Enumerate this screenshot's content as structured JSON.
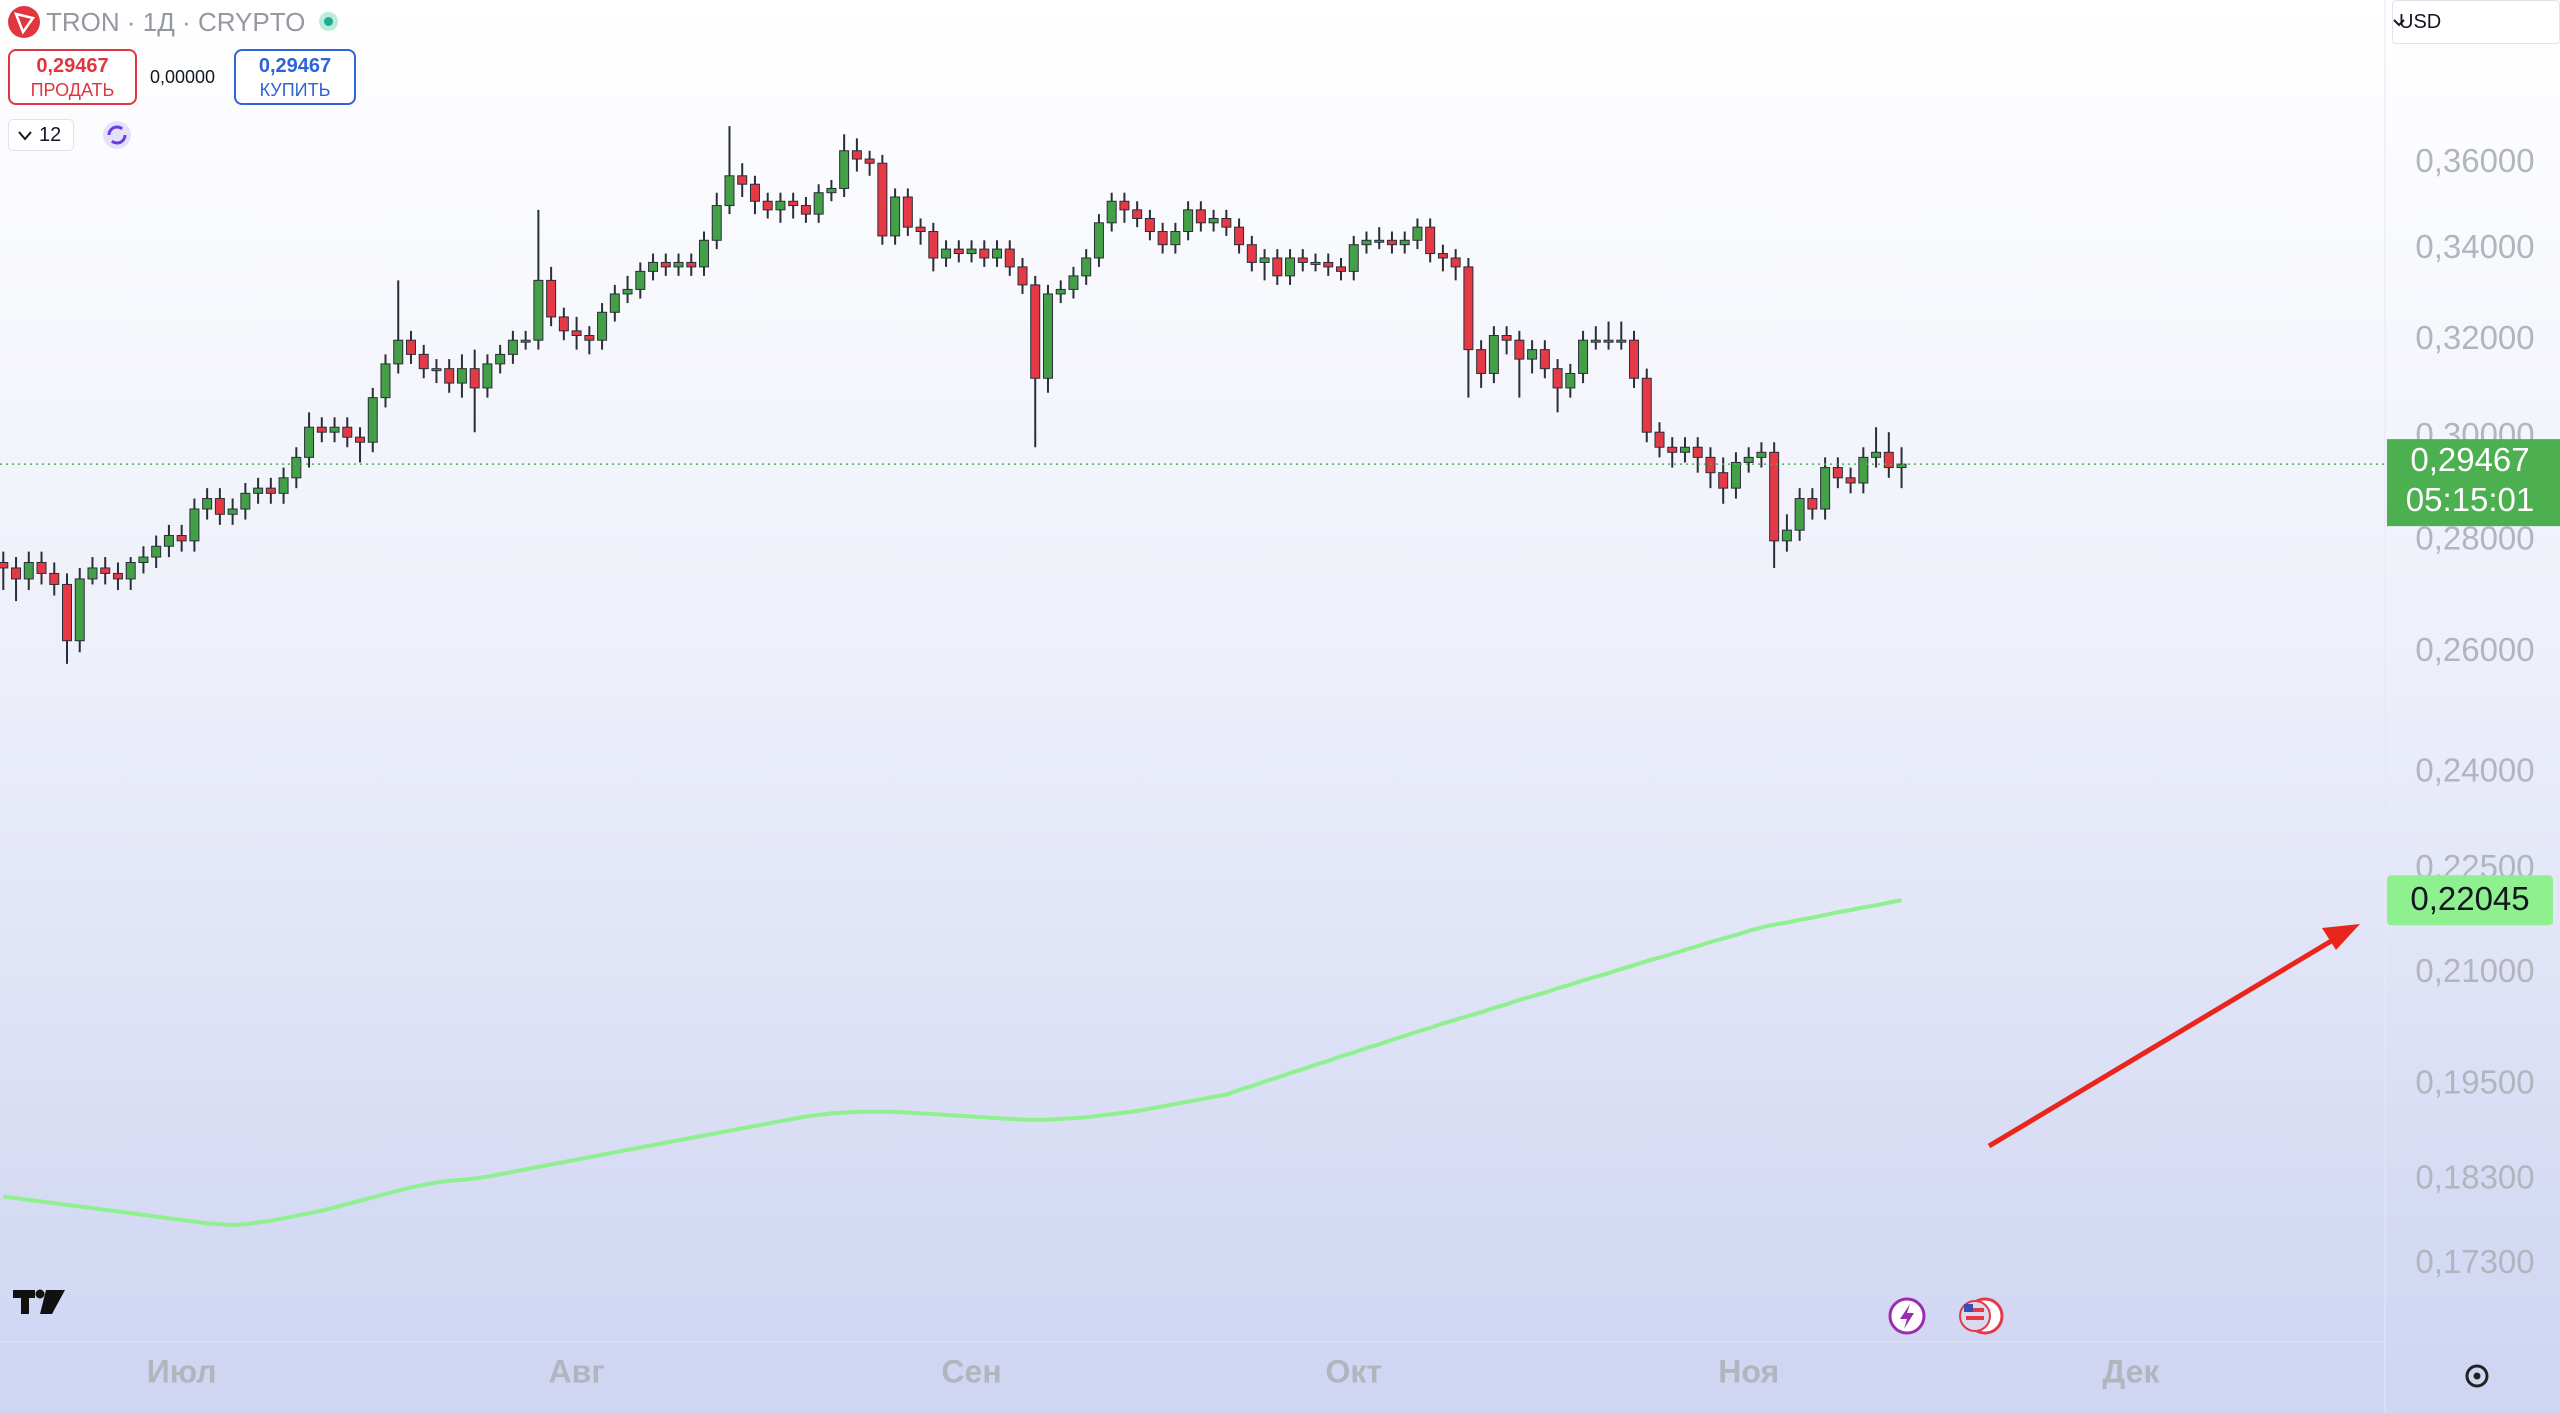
{
  "toolbar": {
    "symbol": "TRON · 1Д · CRYPTO",
    "sell_price": "0,29467",
    "sell_label": "ПРОДАТЬ",
    "spread": "0,00000",
    "buy_price": "0,29467",
    "buy_label": "КУПИТЬ",
    "interval": 12,
    "currency": "USD"
  },
  "chart_data": {
    "type": "candlestick",
    "log": true,
    "grid": false,
    "ylim": [
      0.1643,
      0.4013
    ],
    "yticks": [
      {
        "value": 0.36,
        "label": "0,36000"
      },
      {
        "value": 0.34,
        "label": "0,34000"
      },
      {
        "value": 0.32,
        "label": "0,32000"
      },
      {
        "value": 0.3,
        "label": "0,30000"
      },
      {
        "value": 0.28,
        "label": "0,28000"
      },
      {
        "value": 0.26,
        "label": "0,26000"
      },
      {
        "value": 0.24,
        "label": "0,24000"
      },
      {
        "value": 0.225,
        "label": "0,22500"
      },
      {
        "value": 0.21,
        "label": "0,21000"
      },
      {
        "value": 0.195,
        "label": "0,19500"
      },
      {
        "value": 0.183,
        "label": "0,18300"
      },
      {
        "value": 0.173,
        "label": "0,17300"
      }
    ],
    "categories": [
      null,
      null,
      null,
      null,
      null,
      null,
      null,
      null,
      null,
      null,
      null,
      null,
      null,
      null,
      "Июл",
      null,
      null,
      null,
      null,
      null,
      null,
      null,
      null,
      null,
      null,
      null,
      null,
      null,
      null,
      null,
      null,
      null,
      null,
      null,
      null,
      null,
      null,
      null,
      null,
      null,
      null,
      null,
      null,
      null,
      null,
      "Авг",
      null,
      null,
      null,
      null,
      null,
      null,
      null,
      null,
      null,
      null,
      null,
      null,
      null,
      null,
      null,
      null,
      null,
      null,
      null,
      null,
      null,
      null,
      null,
      null,
      null,
      null,
      null,
      null,
      null,
      null,
      "Сен",
      null,
      null,
      null,
      null,
      null,
      null,
      null,
      null,
      null,
      null,
      null,
      null,
      null,
      null,
      null,
      null,
      null,
      null,
      null,
      null,
      null,
      null,
      null,
      null,
      null,
      null,
      null,
      null,
      null,
      "Окт",
      null,
      null,
      null,
      null,
      null,
      null,
      null,
      null,
      null,
      null,
      null,
      null,
      null,
      null,
      null,
      null,
      null,
      null,
      null,
      null,
      null,
      null,
      null,
      null,
      null,
      null,
      null,
      null,
      null,
      null,
      "Ноя",
      null,
      null,
      null,
      null,
      null,
      null,
      null,
      null,
      null,
      null,
      null,
      null,
      null,
      null,
      null,
      null,
      null,
      null,
      null,
      null,
      null,
      null,
      null,
      null,
      null,
      null,
      null,
      null,
      null,
      "Дек"
    ],
    "candles": {
      "up_color": "#43a047",
      "down_color": "#e53946",
      "last_label": "0,29467",
      "last_color": "#4caf50",
      "countdown": "05:15:01",
      "open": [
        0.276,
        0.275,
        0.273,
        0.276,
        0.274,
        0.272,
        0.262,
        0.273,
        0.275,
        0.274,
        0.273,
        0.276,
        0.277,
        0.279,
        0.281,
        0.28,
        0.286,
        0.288,
        0.285,
        0.286,
        0.289,
        0.29,
        0.289,
        0.292,
        0.296,
        0.302,
        0.301,
        0.302,
        0.3,
        0.299,
        0.308,
        0.315,
        0.32,
        0.317,
        0.314,
        0.314,
        0.311,
        0.314,
        0.31,
        0.315,
        0.317,
        0.32,
        0.32,
        0.333,
        0.325,
        0.322,
        0.321,
        0.32,
        0.326,
        0.33,
        0.331,
        0.335,
        0.337,
        0.336,
        0.337,
        0.336,
        0.342,
        0.35,
        0.357,
        0.355,
        0.351,
        0.349,
        0.351,
        0.35,
        0.348,
        0.353,
        0.354,
        0.363,
        0.361,
        0.36,
        0.343,
        0.352,
        0.345,
        0.344,
        0.338,
        0.34,
        0.339,
        0.34,
        0.338,
        0.34,
        0.336,
        0.332,
        0.312,
        0.33,
        0.331,
        0.334,
        0.338,
        0.346,
        0.351,
        0.349,
        0.347,
        0.344,
        0.341,
        0.344,
        0.349,
        0.346,
        0.347,
        0.345,
        0.341,
        0.337,
        0.338,
        0.334,
        0.338,
        0.337,
        0.337,
        0.336,
        0.335,
        0.341,
        0.342,
        0.342,
        0.341,
        0.342,
        0.345,
        0.339,
        0.338,
        0.336,
        0.318,
        0.313,
        0.321,
        0.32,
        0.316,
        0.318,
        0.314,
        0.31,
        0.313,
        0.32,
        0.32,
        0.32,
        0.32,
        0.312,
        0.301,
        0.298,
        0.297,
        0.298,
        0.296,
        0.293,
        0.29,
        0.295,
        0.296,
        0.297,
        0.28,
        0.282,
        0.288,
        0.286,
        0.294,
        0.292,
        0.291,
        0.296,
        0.297,
        0.294,
        null,
        null,
        null,
        null,
        null,
        null,
        null,
        null,
        null,
        null,
        null,
        null,
        null,
        null,
        null,
        null,
        null,
        null
      ],
      "high": [
        0.278,
        0.277,
        0.278,
        0.278,
        0.276,
        0.274,
        0.275,
        0.277,
        0.277,
        0.276,
        0.277,
        0.279,
        0.281,
        0.283,
        0.283,
        0.288,
        0.29,
        0.29,
        0.288,
        0.291,
        0.292,
        0.292,
        0.294,
        0.298,
        0.305,
        0.304,
        0.304,
        0.304,
        0.302,
        0.31,
        0.317,
        0.333,
        0.322,
        0.319,
        0.316,
        0.316,
        0.317,
        0.318,
        0.317,
        0.319,
        0.322,
        0.322,
        0.349,
        0.336,
        0.327,
        0.325,
        0.323,
        0.328,
        0.332,
        0.334,
        0.337,
        0.339,
        0.339,
        0.339,
        0.339,
        0.344,
        0.353,
        0.369,
        0.36,
        0.357,
        0.353,
        0.353,
        0.353,
        0.352,
        0.355,
        0.356,
        0.367,
        0.366,
        0.363,
        0.362,
        0.354,
        0.354,
        0.347,
        0.346,
        0.342,
        0.342,
        0.342,
        0.342,
        0.342,
        0.342,
        0.338,
        0.334,
        0.332,
        0.333,
        0.336,
        0.34,
        0.348,
        0.353,
        0.353,
        0.351,
        0.349,
        0.346,
        0.346,
        0.351,
        0.351,
        0.349,
        0.349,
        0.347,
        0.343,
        0.34,
        0.34,
        0.34,
        0.34,
        0.339,
        0.339,
        0.338,
        0.343,
        0.344,
        0.345,
        0.344,
        0.344,
        0.347,
        0.347,
        0.341,
        0.34,
        0.338,
        0.32,
        0.323,
        0.323,
        0.322,
        0.32,
        0.32,
        0.316,
        0.315,
        0.322,
        0.323,
        0.324,
        0.324,
        0.322,
        0.314,
        0.303,
        0.3,
        0.3,
        0.3,
        0.298,
        0.296,
        0.297,
        0.298,
        0.299,
        0.299,
        0.285,
        0.29,
        0.29,
        0.296,
        0.296,
        0.294,
        0.298,
        0.302,
        0.301,
        0.298,
        null,
        null,
        null,
        null,
        null,
        null,
        null,
        null,
        null,
        null,
        null,
        null,
        null,
        null,
        null,
        null,
        null,
        null
      ],
      "low": [
        0.271,
        0.269,
        0.271,
        0.272,
        0.27,
        0.258,
        0.26,
        0.272,
        0.272,
        0.271,
        0.271,
        0.274,
        0.275,
        0.277,
        0.278,
        0.278,
        0.284,
        0.283,
        0.283,
        0.284,
        0.287,
        0.287,
        0.287,
        0.29,
        0.294,
        0.299,
        0.299,
        0.298,
        0.295,
        0.297,
        0.306,
        0.313,
        0.315,
        0.312,
        0.311,
        0.309,
        0.308,
        0.301,
        0.308,
        0.313,
        0.315,
        0.318,
        0.318,
        0.323,
        0.32,
        0.318,
        0.317,
        0.318,
        0.324,
        0.328,
        0.329,
        0.333,
        0.334,
        0.334,
        0.334,
        0.334,
        0.34,
        0.348,
        0.352,
        0.348,
        0.347,
        0.346,
        0.347,
        0.346,
        0.346,
        0.351,
        0.352,
        0.358,
        0.357,
        0.341,
        0.341,
        0.343,
        0.341,
        0.335,
        0.336,
        0.337,
        0.337,
        0.336,
        0.336,
        0.334,
        0.33,
        0.298,
        0.309,
        0.328,
        0.329,
        0.332,
        0.336,
        0.344,
        0.346,
        0.345,
        0.342,
        0.339,
        0.339,
        0.342,
        0.344,
        0.344,
        0.343,
        0.339,
        0.335,
        0.333,
        0.332,
        0.332,
        0.335,
        0.335,
        0.334,
        0.333,
        0.333,
        0.339,
        0.34,
        0.339,
        0.339,
        0.34,
        0.337,
        0.335,
        0.333,
        0.308,
        0.31,
        0.311,
        0.317,
        0.308,
        0.313,
        0.312,
        0.305,
        0.308,
        0.311,
        0.318,
        0.318,
        0.318,
        0.31,
        0.299,
        0.296,
        0.294,
        0.295,
        0.293,
        0.29,
        0.287,
        0.288,
        0.293,
        0.294,
        0.275,
        0.278,
        0.28,
        0.284,
        0.284,
        0.29,
        0.289,
        0.289,
        0.294,
        0.292,
        0.29,
        null,
        null,
        null,
        null,
        null,
        null,
        null,
        null,
        null,
        null,
        null,
        null,
        null,
        null,
        null,
        null,
        null,
        null
      ],
      "close": [
        0.275,
        0.273,
        0.276,
        0.274,
        0.272,
        0.262,
        0.273,
        0.275,
        0.274,
        0.273,
        0.276,
        0.277,
        0.279,
        0.281,
        0.28,
        0.286,
        0.288,
        0.285,
        0.286,
        0.289,
        0.29,
        0.289,
        0.292,
        0.296,
        0.302,
        0.301,
        0.302,
        0.3,
        0.299,
        0.308,
        0.315,
        0.32,
        0.317,
        0.314,
        0.314,
        0.311,
        0.314,
        0.31,
        0.315,
        0.317,
        0.32,
        0.32,
        0.333,
        0.325,
        0.322,
        0.321,
        0.32,
        0.326,
        0.33,
        0.331,
        0.335,
        0.337,
        0.336,
        0.337,
        0.336,
        0.342,
        0.35,
        0.357,
        0.355,
        0.351,
        0.349,
        0.351,
        0.35,
        0.348,
        0.353,
        0.354,
        0.363,
        0.361,
        0.36,
        0.343,
        0.352,
        0.345,
        0.344,
        0.338,
        0.34,
        0.339,
        0.34,
        0.338,
        0.34,
        0.336,
        0.332,
        0.312,
        0.33,
        0.331,
        0.334,
        0.338,
        0.346,
        0.351,
        0.349,
        0.347,
        0.344,
        0.341,
        0.344,
        0.349,
        0.346,
        0.347,
        0.345,
        0.341,
        0.337,
        0.338,
        0.334,
        0.338,
        0.337,
        0.337,
        0.336,
        0.335,
        0.341,
        0.342,
        0.342,
        0.341,
        0.342,
        0.345,
        0.339,
        0.338,
        0.336,
        0.318,
        0.313,
        0.321,
        0.32,
        0.316,
        0.318,
        0.314,
        0.31,
        0.313,
        0.32,
        0.32,
        0.32,
        0.32,
        0.312,
        0.301,
        0.298,
        0.297,
        0.298,
        0.296,
        0.293,
        0.29,
        0.295,
        0.296,
        0.297,
        0.28,
        0.282,
        0.288,
        0.286,
        0.294,
        0.292,
        0.291,
        0.296,
        0.297,
        0.294,
        0.29467,
        null,
        null,
        null,
        null,
        null,
        null,
        null,
        null,
        null,
        null,
        null,
        null,
        null,
        null,
        null,
        null,
        null,
        null
      ]
    },
    "overlays": [
      {
        "color": "#8ef08e",
        "last_label": "0,22045",
        "values": [
          0.181,
          0.1808,
          0.1806,
          0.1804,
          0.1802,
          0.18,
          0.1798,
          0.1796,
          0.1794,
          0.1792,
          0.179,
          0.1788,
          0.1786,
          0.1784,
          0.1782,
          0.178,
          0.1778,
          0.1777,
          0.1776,
          0.1777,
          0.1779,
          0.1781,
          0.1784,
          0.1787,
          0.179,
          0.1793,
          0.1797,
          0.1801,
          0.1805,
          0.1809,
          0.1813,
          0.1817,
          0.1821,
          0.1824,
          0.1827,
          0.1829,
          0.183,
          0.1832,
          0.1834,
          0.1837,
          0.184,
          0.1843,
          0.1846,
          0.1849,
          0.1852,
          0.1855,
          0.1858,
          0.1861,
          0.1864,
          0.1867,
          0.187,
          0.1873,
          0.1876,
          0.1879,
          0.1882,
          0.1885,
          0.1888,
          0.1891,
          0.1894,
          0.1897,
          0.19,
          0.1903,
          0.1906,
          0.1909,
          0.1911,
          0.1913,
          0.1914,
          0.1915,
          0.1915,
          0.1915,
          0.1915,
          0.1914,
          0.1913,
          0.1912,
          0.1911,
          0.191,
          0.1909,
          0.1908,
          0.1907,
          0.1906,
          0.1905,
          0.1905,
          0.1905,
          0.1906,
          0.1907,
          0.1908,
          0.191,
          0.1912,
          0.1914,
          0.1916,
          0.1919,
          0.1922,
          0.1925,
          0.1928,
          0.1931,
          0.1934,
          0.1937,
          0.1943,
          0.1948,
          0.1954,
          0.1959,
          0.1965,
          0.197,
          0.1976,
          0.1981,
          0.1987,
          0.1992,
          0.1998,
          0.2003,
          0.2009,
          0.2014,
          0.202,
          0.2025,
          0.2031,
          0.2036,
          0.2041,
          0.2046,
          0.2052,
          0.2057,
          0.2063,
          0.2068,
          0.2073,
          0.2079,
          0.2084,
          0.209,
          0.2095,
          0.21,
          0.2106,
          0.2111,
          0.2117,
          0.2122,
          0.2127,
          0.2133,
          0.2138,
          0.2144,
          0.2149,
          0.2154,
          0.216,
          0.2165,
          0.2169,
          0.2172,
          0.2176,
          0.2179,
          0.2183,
          0.2187,
          0.219,
          0.2194,
          0.2197,
          0.2201,
          0.22045,
          null,
          null,
          null,
          null,
          null,
          null,
          null,
          null,
          null,
          null,
          null,
          null,
          null,
          null,
          null,
          null,
          null,
          null
        ]
      }
    ]
  }
}
